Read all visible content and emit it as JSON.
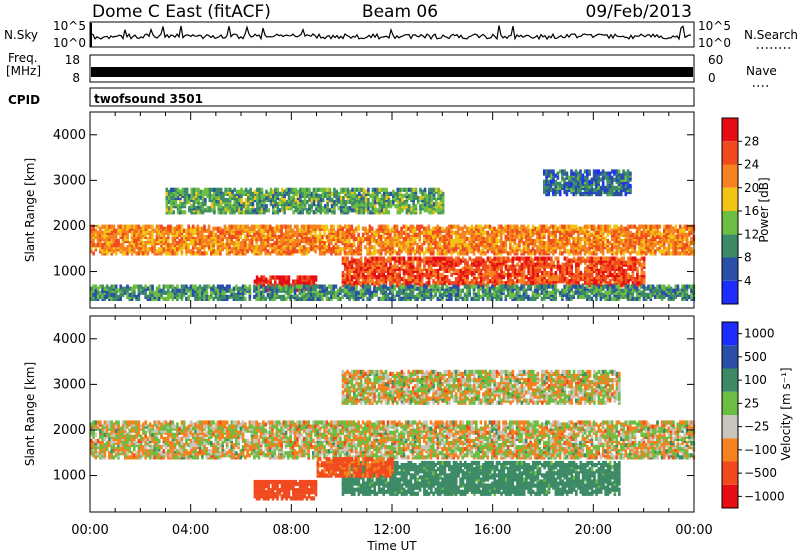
{
  "header": {
    "station": "Dome C East (fitACF)",
    "beam": "Beam 06",
    "date": "09/Feb/2013"
  },
  "status_panels": {
    "nsky": {
      "label": "N.Sky",
      "left_ticks": [
        "10^5",
        "10^0"
      ],
      "right_ticks": [
        "10^5",
        "10^0"
      ],
      "right_label": "N.Search"
    },
    "freq": {
      "label_line1": "Freq.",
      "label_line2": "[MHz]",
      "left_ticks": [
        "18",
        "8"
      ],
      "right_ticks": [
        "60",
        "0"
      ],
      "right_label": "Nave"
    },
    "cpid": {
      "label": "CPID",
      "program": "twofsound 3501"
    }
  },
  "colors": {
    "power": [
      "#1e2dff",
      "#2a4fa8",
      "#3c8a66",
      "#6cbe42",
      "#f2c416",
      "#f5821f",
      "#f04a1e",
      "#e60e12"
    ],
    "velocity": [
      "#e60e12",
      "#f04a1e",
      "#f5821f",
      "#c8c6bc",
      "#6cbe42",
      "#3c8a66",
      "#2a4fa8",
      "#1e2dff"
    ]
  },
  "chart_data": [
    {
      "type": "heatmap",
      "name": "power",
      "ylabel": "Slant Range [km]",
      "ylim": [
        200,
        4500
      ],
      "y_ticks": [
        1000,
        2000,
        3000,
        4000
      ],
      "colorbar": {
        "label": "Power [dB]",
        "ticks": [
          "4",
          "8",
          "12",
          "16",
          "20",
          "24",
          "28"
        ],
        "range": [
          0,
          32
        ]
      },
      "features": [
        {
          "range_km": [
            1400,
            2000
          ],
          "time_h": [
            0,
            24
          ],
          "level_db": 22
        },
        {
          "range_km": [
            700,
            1300
          ],
          "time_h": [
            10,
            22
          ],
          "level_db": 26
        },
        {
          "range_km": [
            600,
            900
          ],
          "time_h": [
            6.5,
            9
          ],
          "level_db": 29
        },
        {
          "range_km": [
            2300,
            2800
          ],
          "time_h": [
            3,
            14
          ],
          "level_db": 12
        },
        {
          "range_km": [
            400,
            700
          ],
          "time_h": [
            0,
            24
          ],
          "level_db": 10
        },
        {
          "range_km": [
            2700,
            3200
          ],
          "time_h": [
            18,
            21.5
          ],
          "level_db": 8
        }
      ]
    },
    {
      "type": "heatmap",
      "name": "velocity",
      "ylabel": "Slant Range [km]",
      "ylim": [
        200,
        4500
      ],
      "y_ticks": [
        1000,
        2000,
        3000,
        4000
      ],
      "colorbar": {
        "label": "Velocity [m s⁻¹]",
        "ticks": [
          "1000",
          "500",
          "100",
          "25",
          "−25",
          "−100",
          "−500",
          "−1000"
        ]
      },
      "features": [
        {
          "range_km": [
            1400,
            2200
          ],
          "time_h": [
            0,
            24
          ],
          "velocity_ms": 0
        },
        {
          "range_km": [
            600,
            1300
          ],
          "time_h": [
            10,
            21
          ],
          "velocity_ms": 200
        },
        {
          "range_km": [
            500,
            900
          ],
          "time_h": [
            6.5,
            9
          ],
          "velocity_ms": -200
        },
        {
          "range_km": [
            1000,
            1400
          ],
          "time_h": [
            9,
            12
          ],
          "velocity_ms": -150
        },
        {
          "range_km": [
            2600,
            3300
          ],
          "time_h": [
            10,
            21
          ],
          "velocity_ms": 0
        }
      ]
    }
  ],
  "x_axis": {
    "label": "Time UT",
    "range_h": [
      0,
      24
    ],
    "tick_labels": [
      "00:00",
      "04:00",
      "08:00",
      "12:00",
      "16:00",
      "20:00",
      "00:00"
    ]
  }
}
